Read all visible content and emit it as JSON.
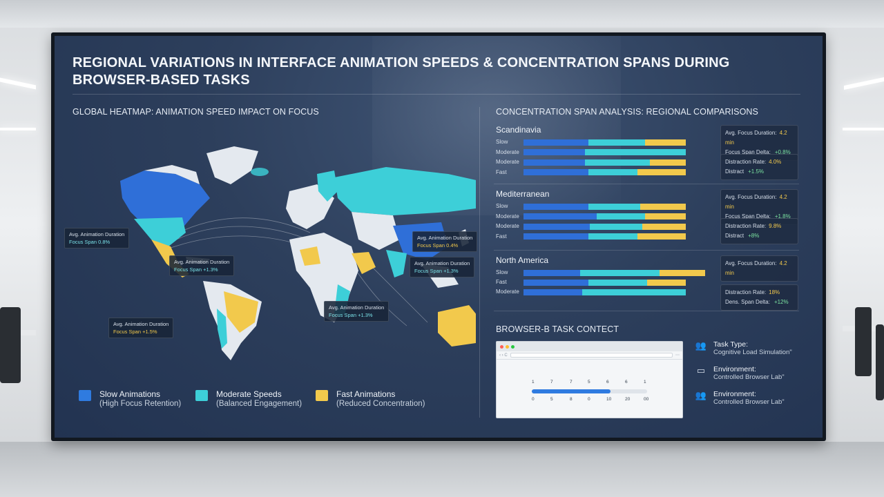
{
  "title": "REGIONAL VARIATIONS IN INTERFACE ANIMATION SPEEDS & CONCENTRATION SPANS DURING BROWSER-BASED TASKS",
  "heatmap": {
    "heading": "GLOBAL HEATMAP: ANIMATION SPEED IMPACT ON FOCUS",
    "callouts": [
      {
        "line1": "Avg. Animation Duration",
        "line2": "Focus Span 0.8%"
      },
      {
        "line1": "Avg. Animation Duration",
        "line2": "Focus Span +1.3%"
      },
      {
        "line1": "Avg. Animation Duration",
        "line2": "Focus Span +1.5%"
      },
      {
        "line1": "Avg. Animation Duration",
        "line2": "Focus Span +1.3%"
      },
      {
        "line1": "Avg. Animation Duration",
        "line2": "Focus Span +1.3%"
      },
      {
        "line1": "Avg. Animation Duration",
        "line2": "Focus Span 0.4%"
      }
    ],
    "legend": [
      {
        "label": "Slow Animations",
        "sub": "(High Focus Retention)",
        "color": "#2f7be0"
      },
      {
        "label": "Moderate Speeds",
        "sub": "(Balanced Engagement)",
        "color": "#3dcfd8"
      },
      {
        "label": "Fast Animations",
        "sub": "(Reduced Concentration)",
        "color": "#f2c94c"
      }
    ]
  },
  "analysis": {
    "heading": "CONCENTRATION SPAN ANALYSIS: REGIONAL COMPARISONS",
    "regions": [
      {
        "name": "Scandinavia",
        "rows": [
          {
            "label": "Slow",
            "segs": [
              0.4,
              0.35,
              0.25
            ]
          },
          {
            "label": "Moderate",
            "segs": [
              0.38,
              0.62,
              0
            ]
          },
          {
            "label": "Moderate",
            "segs": [
              0.38,
              0.4,
              0.22
            ]
          },
          {
            "label": "Fast",
            "segs": [
              0.4,
              0.3,
              0.3
            ]
          }
        ],
        "stats": [
          {
            "l1": "Avg. Focus Duration:",
            "v1": "4.2 min",
            "l2": "Focus Span Delta:",
            "v2": "+0.8%"
          },
          {
            "l1": "Distraction Rate:",
            "v1": "4.0%",
            "l2": "Distract",
            "v2": "+1.5%"
          }
        ]
      },
      {
        "name": "Mediterranean",
        "rows": [
          {
            "label": "Slow",
            "segs": [
              0.4,
              0.32,
              0.28
            ]
          },
          {
            "label": "Moderate",
            "segs": [
              0.45,
              0.3,
              0.25
            ]
          },
          {
            "label": "Moderate",
            "segs": [
              0.41,
              0.32,
              0.27
            ]
          },
          {
            "label": "Fast",
            "segs": [
              0.4,
              0.3,
              0.3
            ]
          }
        ],
        "stats": [
          {
            "l1": "Avg. Focus Duration:",
            "v1": "4.2 min",
            "l2": "Focus Span Delta:",
            "v2": "+1.8%"
          },
          {
            "l1": "Distraction Rate:",
            "v1": "9.8%",
            "l2": "Distract",
            "v2": "+8%"
          }
        ]
      },
      {
        "name": "North America",
        "rows": [
          {
            "label": "Slow",
            "segs": [
              0.31,
              0.44,
              0.25
            ]
          },
          {
            "label": "Fast",
            "segs": [
              0.4,
              0.36,
              0.24
            ]
          },
          {
            "label": "Moderate",
            "segs": [
              0.36,
              0.64,
              0
            ]
          }
        ],
        "stats": [
          {
            "l1": "Avg. Focus Duration:",
            "v1": "4.2 min",
            "l2": "",
            "v2": ""
          },
          {
            "l1": "Distraction Rate:",
            "v1": "18%",
            "l2": "Dens. Span Delta:",
            "v2": "+12%"
          }
        ]
      }
    ]
  },
  "task": {
    "heading": "BROWSER-B TASK CONTECT",
    "browser": {
      "top_ticks": [
        "1",
        "7",
        "7",
        "5",
        "6",
        "6",
        "1"
      ],
      "bottom_ticks": [
        "0",
        "5",
        "8",
        "0",
        "10",
        "20",
        "00"
      ],
      "progress": 0.68
    },
    "context": [
      {
        "icon": "user-group-icon",
        "label": "Task Type:",
        "value": "Cognitive Load Simulation\""
      },
      {
        "icon": "monitor-icon",
        "label": "Environment:",
        "value": "Controlled Browser Lab\""
      },
      {
        "icon": "user-group-icon",
        "label": "Environment:",
        "value": "Controlled Browser Lab\""
      }
    ]
  }
}
